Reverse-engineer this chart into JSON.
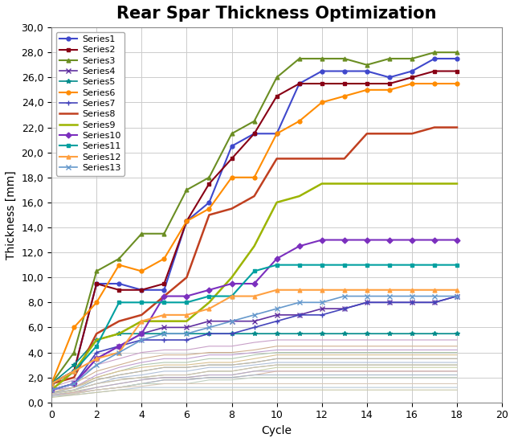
{
  "title": "Rear Spar Thickness Optimization",
  "xlabel": "Cycle",
  "ylabel": "Thickness [mm]",
  "xlim": [
    0,
    20
  ],
  "ylim": [
    0,
    30
  ],
  "xticks": [
    0,
    2,
    4,
    6,
    8,
    10,
    12,
    14,
    16,
    18,
    20
  ],
  "yticks": [
    0.0,
    2.0,
    4.0,
    6.0,
    8.0,
    10.0,
    12.0,
    14.0,
    16.0,
    18.0,
    20.0,
    22.0,
    24.0,
    26.0,
    28.0,
    30.0
  ],
  "series": [
    {
      "name": "Series1",
      "color": "#3F48CC",
      "marker": "o",
      "markersize": 3.5,
      "linewidth": 1.5,
      "values": [
        1.5,
        2.5,
        9.5,
        9.5,
        9.0,
        9.0,
        14.5,
        16.0,
        20.5,
        21.5,
        21.5,
        25.5,
        26.5,
        26.5,
        26.5,
        26.0,
        26.5,
        27.5,
        27.5
      ]
    },
    {
      "name": "Series2",
      "color": "#880015",
      "marker": "s",
      "markersize": 3.5,
      "linewidth": 1.5,
      "values": [
        1.5,
        2.5,
        9.5,
        9.0,
        9.0,
        9.5,
        14.5,
        17.5,
        19.5,
        21.5,
        24.5,
        25.5,
        25.5,
        25.5,
        25.5,
        25.5,
        26.0,
        26.5,
        26.5
      ]
    },
    {
      "name": "Series3",
      "color": "#6B8E23",
      "marker": "^",
      "markersize": 3.5,
      "linewidth": 1.5,
      "values": [
        1.5,
        4.0,
        10.5,
        11.5,
        13.5,
        13.5,
        17.0,
        18.0,
        21.5,
        22.5,
        26.0,
        27.5,
        27.5,
        27.5,
        27.0,
        27.5,
        27.5,
        28.0,
        28.0
      ]
    },
    {
      "name": "Series4",
      "color": "#6030A0",
      "marker": "x",
      "markersize": 4,
      "linewidth": 1.2,
      "values": [
        1.0,
        1.5,
        3.5,
        4.5,
        5.5,
        6.0,
        6.0,
        6.5,
        6.5,
        6.5,
        7.0,
        7.0,
        7.5,
        7.5,
        8.0,
        8.0,
        8.0,
        8.0,
        8.5
      ]
    },
    {
      "name": "Series5",
      "color": "#008B8B",
      "marker": "*",
      "markersize": 4,
      "linewidth": 1.2,
      "values": [
        1.5,
        3.0,
        5.0,
        5.5,
        5.5,
        5.5,
        5.5,
        5.5,
        5.5,
        5.5,
        5.5,
        5.5,
        5.5,
        5.5,
        5.5,
        5.5,
        5.5,
        5.5,
        5.5
      ]
    },
    {
      "name": "Series6",
      "color": "#FF8C00",
      "marker": "o",
      "markersize": 3.5,
      "linewidth": 1.5,
      "values": [
        1.5,
        6.0,
        8.0,
        11.0,
        10.5,
        11.5,
        14.5,
        15.5,
        18.0,
        18.0,
        21.5,
        22.5,
        24.0,
        24.5,
        25.0,
        25.0,
        25.5,
        25.5,
        25.5
      ]
    },
    {
      "name": "Series7",
      "color": "#4444BB",
      "marker": "+",
      "markersize": 5,
      "linewidth": 1.2,
      "values": [
        1.0,
        1.5,
        4.0,
        4.5,
        5.0,
        5.0,
        5.0,
        5.5,
        5.5,
        6.0,
        6.5,
        7.0,
        7.0,
        7.5,
        8.0,
        8.0,
        8.0,
        8.0,
        8.5
      ]
    },
    {
      "name": "Series8",
      "color": "#C04020",
      "marker": "None",
      "markersize": 3,
      "linewidth": 1.8,
      "values": [
        1.5,
        2.0,
        5.5,
        6.5,
        7.0,
        8.5,
        10.0,
        15.0,
        15.5,
        16.5,
        19.5,
        19.5,
        19.5,
        19.5,
        21.5,
        21.5,
        21.5,
        22.0,
        22.0
      ]
    },
    {
      "name": "Series9",
      "color": "#9CB400",
      "marker": "None",
      "markersize": 3,
      "linewidth": 1.8,
      "values": [
        1.0,
        2.5,
        5.0,
        5.5,
        6.5,
        6.5,
        6.5,
        8.0,
        10.0,
        12.5,
        16.0,
        16.5,
        17.5,
        17.5,
        17.5,
        17.5,
        17.5,
        17.5,
        17.5
      ]
    },
    {
      "name": "Series10",
      "color": "#7B2FBE",
      "marker": "D",
      "markersize": 3.5,
      "linewidth": 1.5,
      "values": [
        1.0,
        1.5,
        3.5,
        4.5,
        5.5,
        8.5,
        8.5,
        9.0,
        9.5,
        9.5,
        11.5,
        12.5,
        13.0,
        13.0,
        13.0,
        13.0,
        13.0,
        13.0,
        13.0
      ]
    },
    {
      "name": "Series11",
      "color": "#00A0A0",
      "marker": "s",
      "markersize": 3.5,
      "linewidth": 1.5,
      "values": [
        1.5,
        2.5,
        4.5,
        8.0,
        8.0,
        8.0,
        8.0,
        8.5,
        8.5,
        10.5,
        11.0,
        11.0,
        11.0,
        11.0,
        11.0,
        11.0,
        11.0,
        11.0,
        11.0
      ]
    },
    {
      "name": "Series12",
      "color": "#FFA040",
      "marker": "^",
      "markersize": 3.5,
      "linewidth": 1.5,
      "values": [
        1.5,
        2.5,
        3.5,
        4.0,
        6.5,
        7.0,
        7.0,
        7.5,
        8.5,
        8.5,
        9.0,
        9.0,
        9.0,
        9.0,
        9.0,
        9.0,
        9.0,
        9.0,
        9.0
      ]
    },
    {
      "name": "Series13",
      "color": "#6699CC",
      "marker": "x",
      "markersize": 4,
      "linewidth": 1.2,
      "values": [
        1.0,
        1.5,
        3.0,
        4.0,
        5.0,
        5.5,
        5.5,
        6.0,
        6.5,
        7.0,
        7.5,
        8.0,
        8.0,
        8.5,
        8.5,
        8.5,
        8.5,
        8.5,
        8.5
      ]
    }
  ],
  "extra_series": [
    {
      "color": "#C8A0C8",
      "values": [
        1.2,
        1.8,
        3.0,
        3.5,
        4.0,
        4.2,
        4.2,
        4.5,
        4.5,
        4.8,
        5.0,
        5.0,
        5.0,
        5.0,
        5.0,
        5.0,
        5.0,
        5.0,
        5.0
      ]
    },
    {
      "color": "#D0B090",
      "values": [
        1.0,
        1.5,
        2.5,
        3.0,
        3.5,
        3.8,
        3.8,
        4.0,
        4.0,
        4.2,
        4.5,
        4.5,
        4.5,
        4.5,
        4.5,
        4.5,
        4.5,
        4.5,
        4.5
      ]
    },
    {
      "color": "#B0C8B0",
      "values": [
        1.0,
        1.2,
        2.0,
        2.5,
        3.0,
        3.2,
        3.2,
        3.5,
        3.5,
        3.8,
        4.0,
        4.0,
        4.0,
        4.0,
        4.0,
        4.0,
        4.0,
        4.0,
        4.0
      ]
    },
    {
      "color": "#C0A0D0",
      "values": [
        1.0,
        1.2,
        2.2,
        2.8,
        3.2,
        3.5,
        3.5,
        3.8,
        3.8,
        4.0,
        4.2,
        4.2,
        4.2,
        4.2,
        4.2,
        4.2,
        4.2,
        4.2,
        4.2
      ]
    },
    {
      "color": "#90B8D0",
      "values": [
        0.8,
        1.0,
        1.8,
        2.2,
        2.5,
        2.8,
        2.8,
        3.0,
        3.0,
        3.2,
        3.5,
        3.5,
        3.5,
        3.5,
        3.5,
        3.5,
        3.5,
        3.5,
        3.5
      ]
    },
    {
      "color": "#D8C090",
      "values": [
        0.8,
        1.2,
        2.0,
        2.5,
        2.8,
        3.0,
        3.0,
        3.2,
        3.2,
        3.5,
        3.8,
        3.8,
        3.8,
        3.8,
        3.8,
        3.8,
        3.8,
        3.8,
        3.8
      ]
    },
    {
      "color": "#A8C8A8",
      "values": [
        0.7,
        1.0,
        1.5,
        1.8,
        2.0,
        2.2,
        2.2,
        2.5,
        2.5,
        2.8,
        3.0,
        3.0,
        3.0,
        3.0,
        3.0,
        3.0,
        3.0,
        3.0,
        3.0
      ]
    },
    {
      "color": "#C8B8A0",
      "values": [
        0.8,
        1.2,
        1.8,
        2.2,
        2.5,
        2.8,
        2.8,
        3.0,
        3.0,
        3.2,
        3.5,
        3.5,
        3.5,
        3.5,
        3.5,
        3.5,
        3.5,
        3.5,
        3.5
      ]
    },
    {
      "color": "#B0C0D8",
      "values": [
        0.7,
        1.0,
        1.5,
        2.0,
        2.2,
        2.5,
        2.5,
        2.8,
        2.8,
        3.0,
        3.2,
        3.2,
        3.2,
        3.2,
        3.2,
        3.2,
        3.2,
        3.2,
        3.2
      ]
    },
    {
      "color": "#D0C0B0",
      "values": [
        0.7,
        1.0,
        1.5,
        1.8,
        2.0,
        2.2,
        2.2,
        2.5,
        2.5,
        2.8,
        3.0,
        3.0,
        3.0,
        3.0,
        3.0,
        3.0,
        3.0,
        3.0,
        3.0
      ]
    },
    {
      "color": "#C8D0A8",
      "values": [
        0.6,
        0.9,
        1.2,
        1.5,
        1.8,
        2.0,
        2.0,
        2.2,
        2.2,
        2.5,
        2.8,
        2.8,
        2.8,
        2.8,
        2.8,
        2.8,
        2.8,
        2.8,
        2.8
      ]
    },
    {
      "color": "#B8A8C8",
      "values": [
        0.6,
        0.8,
        1.2,
        1.5,
        1.8,
        2.0,
        2.0,
        2.2,
        2.2,
        2.5,
        2.5,
        2.5,
        2.5,
        2.5,
        2.5,
        2.5,
        2.5,
        2.5,
        2.5
      ]
    },
    {
      "color": "#D8B8A8",
      "values": [
        0.5,
        0.8,
        1.0,
        1.2,
        1.5,
        1.8,
        1.8,
        2.0,
        2.0,
        2.2,
        2.5,
        2.5,
        2.5,
        2.5,
        2.5,
        2.5,
        2.5,
        2.5,
        2.5
      ]
    },
    {
      "color": "#A8B8C8",
      "values": [
        0.5,
        0.7,
        1.0,
        1.2,
        1.5,
        1.8,
        1.8,
        2.0,
        2.0,
        2.2,
        2.2,
        2.2,
        2.2,
        2.2,
        2.2,
        2.2,
        2.2,
        2.2,
        2.2
      ]
    },
    {
      "color": "#C0D0C0",
      "values": [
        0.5,
        0.7,
        1.0,
        1.2,
        1.5,
        1.5,
        1.5,
        1.8,
        1.8,
        2.0,
        2.0,
        2.0,
        2.0,
        2.0,
        2.0,
        2.0,
        2.0,
        2.0,
        2.0
      ]
    },
    {
      "color": "#D8C8B8",
      "values": [
        0.5,
        0.7,
        1.0,
        1.2,
        1.3,
        1.5,
        1.5,
        1.5,
        1.5,
        1.5,
        1.5,
        1.5,
        1.5,
        1.5,
        1.5,
        1.5,
        1.5,
        1.5,
        1.5
      ]
    },
    {
      "color": "#B8C8D8",
      "values": [
        0.5,
        0.6,
        0.8,
        1.0,
        1.2,
        1.2,
        1.2,
        1.2,
        1.2,
        1.2,
        1.2,
        1.2,
        1.2,
        1.2,
        1.2,
        1.2,
        1.2,
        1.2,
        1.2
      ]
    },
    {
      "color": "#C8C8A8",
      "values": [
        0.4,
        0.6,
        0.8,
        1.0,
        1.0,
        1.0,
        1.0,
        1.0,
        1.0,
        1.0,
        1.0,
        1.0,
        1.0,
        1.0,
        1.0,
        1.0,
        1.0,
        1.0,
        1.0
      ]
    }
  ],
  "background_color": "#FFFFFF",
  "grid_color": "#CCCCCC",
  "title_fontsize": 15,
  "label_fontsize": 10,
  "tick_fontsize": 9,
  "legend_fontsize": 8
}
